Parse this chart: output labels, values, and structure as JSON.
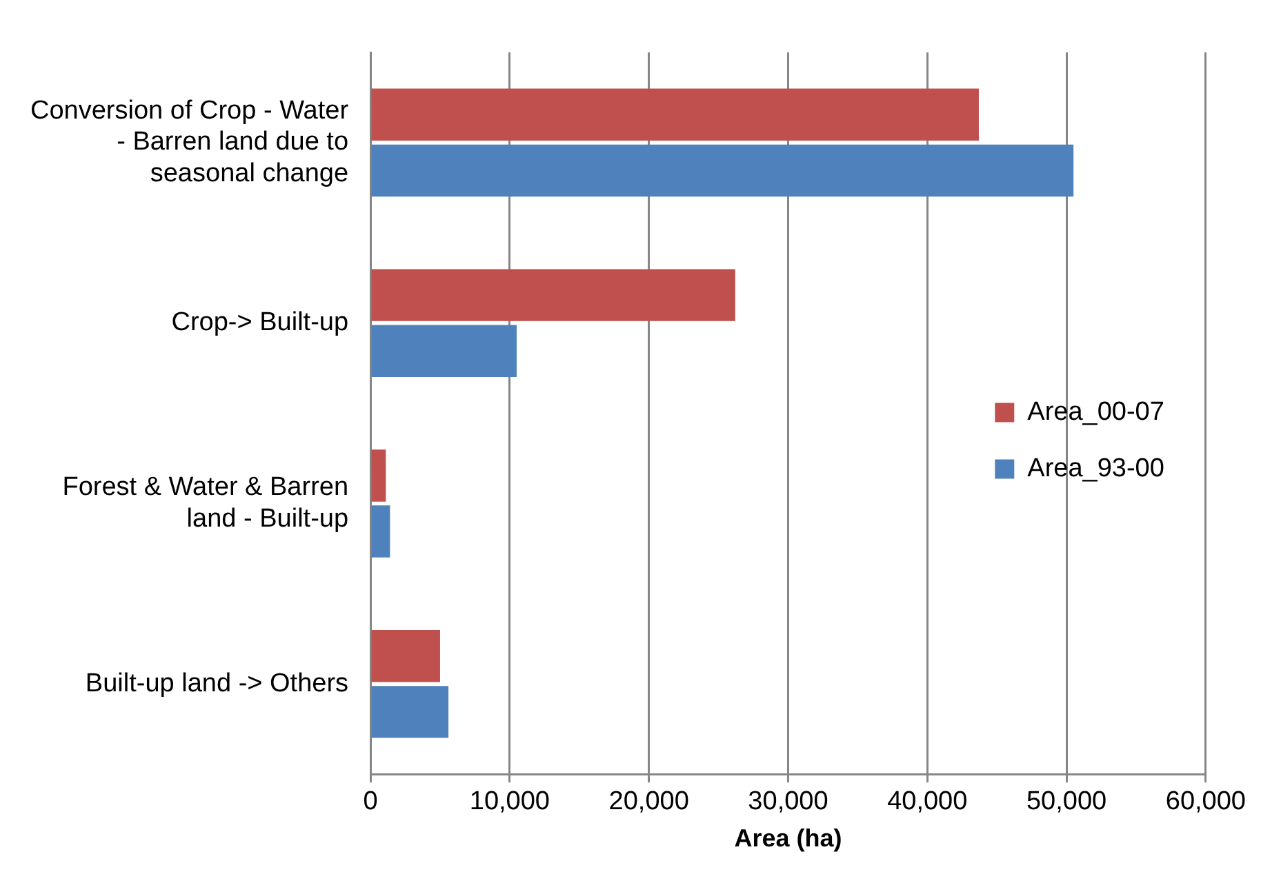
{
  "chart_data": {
    "type": "bar",
    "orientation": "horizontal",
    "xlabel": "Area (ha)",
    "categories": [
      "Conversion of Crop - Water - Barren land due to seasonal change",
      "Crop-> Built-up",
      "Forest & Water & Barren land - Built-up",
      "Built-up land -> Others"
    ],
    "series": [
      {
        "name": "Area_00-07",
        "color": "#c0504d",
        "values": [
          43700,
          26200,
          1100,
          5000
        ]
      },
      {
        "name": "Area_93-00",
        "color": "#4f81bd",
        "values": [
          50500,
          10500,
          1400,
          5600
        ]
      }
    ],
    "xlim": [
      0,
      60000
    ],
    "xticks": [
      {
        "value": 0,
        "label": "0"
      },
      {
        "value": 10000,
        "label": "10,000"
      },
      {
        "value": 20000,
        "label": "20,000"
      },
      {
        "value": 30000,
        "label": "30,000"
      },
      {
        "value": 40000,
        "label": "40,000"
      },
      {
        "value": 50000,
        "label": "50,000"
      },
      {
        "value": 60000,
        "label": "60,000"
      }
    ],
    "grid": "x",
    "legend": "right"
  }
}
